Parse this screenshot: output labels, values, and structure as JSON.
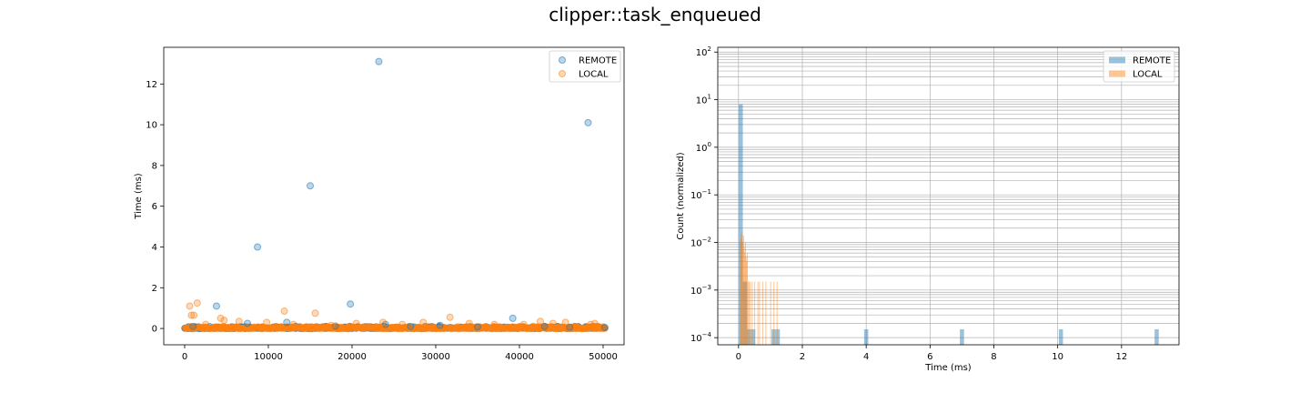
{
  "figure": {
    "title": "clipper::task_enqueued"
  },
  "colors": {
    "remote": "#1f77b4",
    "local": "#ff7f0e",
    "grid": "#b0b0b0"
  },
  "chart_data": [
    {
      "type": "scatter",
      "title": "",
      "xlabel": "",
      "ylabel": "Time (ms)",
      "xlim": [
        -2500,
        52500
      ],
      "ylim": [
        -0.8,
        13.8
      ],
      "xticks": [
        0,
        10000,
        20000,
        30000,
        40000,
        50000
      ],
      "xtick_labels": [
        "0",
        "10000",
        "20000",
        "30000",
        "40000",
        "50000"
      ],
      "yticks": [
        0,
        2,
        4,
        6,
        8,
        10,
        12
      ],
      "ytick_labels": [
        "0",
        "2",
        "4",
        "6",
        "8",
        "10",
        "12"
      ],
      "legend": {
        "placement": "top-right",
        "entries": [
          "REMOTE",
          "LOCAL"
        ]
      },
      "grid": false,
      "series": [
        {
          "name": "REMOTE",
          "points": [
            [
              23200,
              13.1
            ],
            [
              48200,
              10.1
            ],
            [
              15000,
              7.0
            ],
            [
              8700,
              4.0
            ],
            [
              3800,
              1.1
            ],
            [
              19800,
              1.2
            ],
            [
              39200,
              0.5
            ],
            [
              12200,
              0.3
            ],
            [
              7500,
              0.25
            ],
            [
              24000,
              0.2
            ],
            [
              30500,
              0.15
            ],
            [
              43000,
              0.1
            ],
            [
              50200,
              0.05
            ],
            [
              1000,
              0.1
            ],
            [
              18000,
              0.12
            ],
            [
              35000,
              0.08
            ],
            [
              27000,
              0.1
            ],
            [
              46000,
              0.06
            ]
          ]
        },
        {
          "name": "LOCAL",
          "points": [
            [
              600,
              1.1
            ],
            [
              1500,
              1.25
            ],
            [
              800,
              0.65
            ],
            [
              1100,
              0.65
            ],
            [
              4300,
              0.5
            ],
            [
              4700,
              0.4
            ],
            [
              11900,
              0.85
            ],
            [
              15600,
              0.75
            ],
            [
              31700,
              0.55
            ],
            [
              6500,
              0.35
            ],
            [
              9800,
              0.3
            ],
            [
              2500,
              0.2
            ],
            [
              20500,
              0.25
            ],
            [
              23700,
              0.3
            ],
            [
              26000,
              0.2
            ],
            [
              34000,
              0.25
            ],
            [
              40500,
              0.2
            ],
            [
              44000,
              0.25
            ],
            [
              45500,
              0.3
            ],
            [
              49000,
              0.25
            ],
            [
              13000,
              0.2
            ],
            [
              17500,
              0.15
            ],
            [
              28500,
              0.3
            ],
            [
              37000,
              0.2
            ],
            [
              42500,
              0.35
            ],
            [
              48500,
              0.2
            ]
          ]
        }
      ]
    },
    {
      "type": "bar",
      "title": "",
      "xlabel": "Time (ms)",
      "ylabel": "Count (normalized)",
      "xlim": [
        -0.65,
        13.8
      ],
      "ylim_log10": [
        -4.15,
        2.1
      ],
      "yscale": "log",
      "xticks": [
        0,
        2,
        4,
        6,
        8,
        10,
        12
      ],
      "xtick_labels": [
        "0",
        "2",
        "4",
        "6",
        "8",
        "10",
        "12"
      ],
      "yticks_log10": [
        -4,
        -3,
        -2,
        -1,
        0,
        1,
        2
      ],
      "ytick_labels": [
        "10",
        "10",
        "10",
        "10",
        "10",
        "10",
        "10"
      ],
      "ytick_exponents": [
        "−4",
        "−3",
        "−2",
        "−1",
        "0",
        "1",
        "2"
      ],
      "legend": {
        "placement": "top-right",
        "entries": [
          "REMOTE",
          "LOCAL"
        ]
      },
      "grid": true,
      "series": [
        {
          "name": "REMOTE",
          "bin_width": 0.13,
          "bars": [
            [
              0.07,
              8.0
            ],
            [
              0.2,
              0.0015
            ],
            [
              0.33,
              0.00015
            ],
            [
              0.46,
              0.00015
            ],
            [
              1.1,
              0.00015
            ],
            [
              1.23,
              0.00015
            ],
            [
              4.0,
              0.00015
            ],
            [
              7.0,
              0.00015
            ],
            [
              10.1,
              0.00015
            ],
            [
              13.1,
              0.00015
            ]
          ]
        },
        {
          "name": "LOCAL",
          "bin_width": 0.0125,
          "bars": [
            [
              0.05,
              0.01
            ],
            [
              0.07,
              0.015
            ],
            [
              0.09,
              0.012
            ],
            [
              0.11,
              0.017
            ],
            [
              0.13,
              0.01
            ],
            [
              0.15,
              0.014
            ],
            [
              0.17,
              0.008
            ],
            [
              0.19,
              0.006
            ],
            [
              0.21,
              0.01
            ],
            [
              0.23,
              0.005
            ],
            [
              0.25,
              0.004
            ],
            [
              0.27,
              0.006
            ],
            [
              0.29,
              0.0015
            ],
            [
              0.32,
              0.0015
            ],
            [
              0.36,
              0.0015
            ],
            [
              0.42,
              0.0015
            ],
            [
              0.5,
              0.0015
            ],
            [
              0.6,
              0.0015
            ],
            [
              0.65,
              0.0015
            ],
            [
              0.75,
              0.0015
            ],
            [
              0.85,
              0.0015
            ],
            [
              1.0,
              0.0015
            ],
            [
              1.1,
              0.0015
            ],
            [
              1.2,
              0.0015
            ]
          ]
        }
      ]
    }
  ]
}
